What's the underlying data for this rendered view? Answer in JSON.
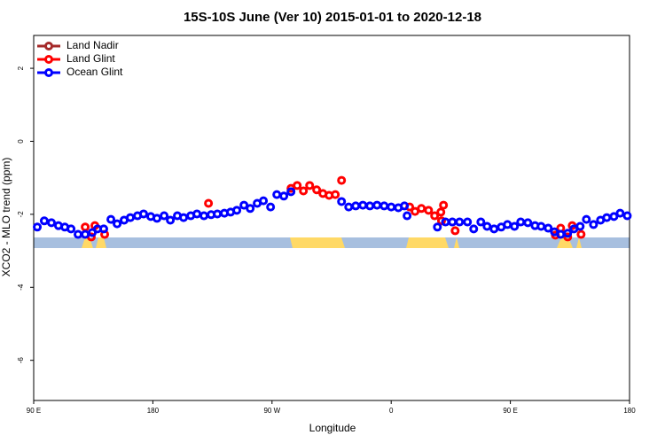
{
  "chart_data": {
    "type": "scatter",
    "title": "15S-10S June (Ver 10)   2015-01-01 to 2020-12-18",
    "x_label": "Longitude",
    "y_label": "XCO2 - MLO trend (ppm)",
    "xlim": [
      90,
      540
    ],
    "ylim": [
      -7.1,
      2.9
    ],
    "xticks": [
      {
        "value": 90,
        "label": "90 E"
      },
      180,
      {
        "value": 270,
        "label": "90 W"
      },
      {
        "value": 360,
        "label": "0"
      },
      {
        "value": 450,
        "label": "90 E"
      },
      {
        "value": 540,
        "label": "180"
      }
    ],
    "yticks": [
      -6,
      -4,
      -2,
      0,
      2
    ],
    "legend": "top-left",
    "series": [
      {
        "name": "Land Nadir",
        "color": "#a52a2a",
        "x": [],
        "values": []
      },
      {
        "name": "Land Glint",
        "color": "#ff0000",
        "x": [
          128.9,
          133.5,
          136.2,
          143.6,
          222,
          284.3,
          289,
          293.7,
          298.4,
          303.7,
          308.4,
          313.1,
          317.8,
          322.5,
          374,
          378,
          382.8,
          388.2,
          392.8,
          397.5,
          399.5,
          398,
          408.3,
          484,
          488,
          493.3,
          496.7,
          503.4
        ],
        "values": [
          -2.35,
          -2.62,
          -2.31,
          -2.55,
          -1.7,
          -1.29,
          -1.21,
          -1.36,
          -1.21,
          -1.33,
          -1.43,
          -1.48,
          -1.46,
          -1.07,
          -1.8,
          -1.92,
          -1.84,
          -1.89,
          -2.04,
          -1.94,
          -1.75,
          -2.18,
          -2.45,
          -2.57,
          -2.38,
          -2.62,
          -2.31,
          -2.55
        ]
      },
      {
        "name": "Ocean Glint",
        "color": "#0000ff",
        "x": [
          92.7,
          98,
          103.4,
          108.7,
          113.5,
          118.2,
          123.5,
          128.9,
          134.2,
          138.2,
          142.9,
          148.3,
          153,
          158.3,
          163,
          168.4,
          173,
          178.4,
          183.1,
          188.5,
          193.2,
          198.5,
          203.2,
          208.6,
          213.3,
          218.6,
          224,
          228.7,
          234,
          238.7,
          243.4,
          248.8,
          253.5,
          258.8,
          263.5,
          268.9,
          273.6,
          278.9,
          284.3,
          322.5,
          327.9,
          333.2,
          338.6,
          343.9,
          349.3,
          354.7,
          360,
          365.4,
          370,
          372,
          394.9,
          401,
          406.2,
          411.6,
          417.6,
          422.3,
          427.7,
          432.4,
          437.7,
          443.1,
          447.8,
          453.1,
          457.8,
          463.2,
          468.6,
          473.2,
          478.6,
          483.3,
          488,
          493.3,
          498,
          502.7,
          507.4,
          512.8,
          518.1,
          522.8,
          528.2,
          532.9,
          538.3
        ],
        "values": [
          -2.35,
          -2.18,
          -2.23,
          -2.31,
          -2.35,
          -2.4,
          -2.55,
          -2.55,
          -2.5,
          -2.4,
          -2.4,
          -2.14,
          -2.26,
          -2.16,
          -2.09,
          -2.04,
          -1.99,
          -2.06,
          -2.11,
          -2.04,
          -2.16,
          -2.04,
          -2.09,
          -2.04,
          -1.99,
          -2.04,
          -2.01,
          -1.99,
          -1.97,
          -1.94,
          -1.89,
          -1.75,
          -1.84,
          -1.7,
          -1.63,
          -1.8,
          -1.46,
          -1.5,
          -1.38,
          -1.65,
          -1.8,
          -1.77,
          -1.75,
          -1.77,
          -1.75,
          -1.77,
          -1.8,
          -1.82,
          -1.77,
          -2.04,
          -2.35,
          -2.21,
          -2.21,
          -2.21,
          -2.21,
          -2.4,
          -2.21,
          -2.33,
          -2.4,
          -2.35,
          -2.28,
          -2.33,
          -2.21,
          -2.23,
          -2.31,
          -2.33,
          -2.38,
          -2.48,
          -2.55,
          -2.52,
          -2.4,
          -2.33,
          -2.14,
          -2.28,
          -2.16,
          -2.09,
          -2.06,
          -1.97,
          -2.04
        ]
      }
    ]
  }
}
